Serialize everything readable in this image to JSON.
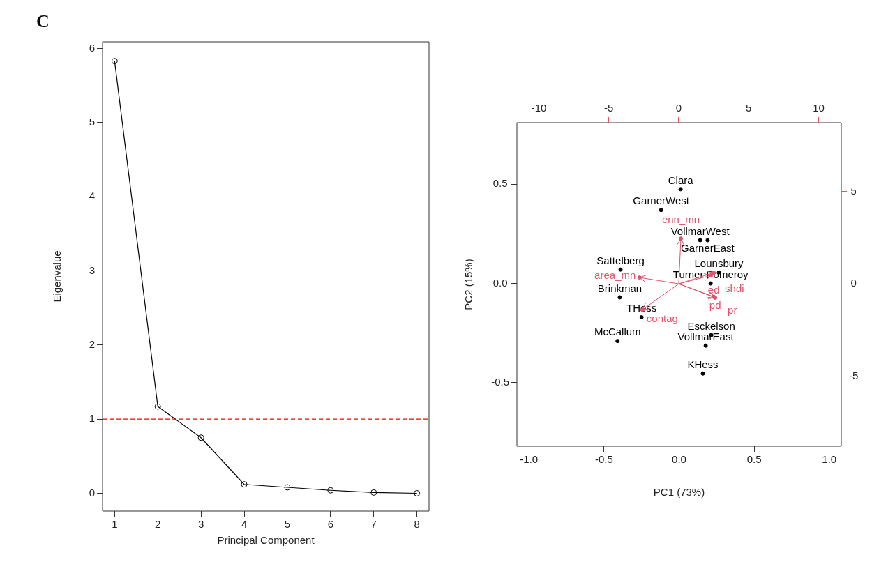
{
  "chart_data": [
    {
      "type": "line",
      "xlabel": "Principal Component",
      "ylabel": "Eigenvalue",
      "annotations": [
        "C"
      ],
      "x": [
        1,
        2,
        3,
        4,
        5,
        6,
        7,
        8
      ],
      "series": [
        {
          "color": "#000000",
          "values": [
            5.83,
            1.17,
            0.75,
            0.12,
            0.08,
            0.04,
            0.01,
            0
          ]
        }
      ],
      "xlim": [
        0.72,
        8.28
      ],
      "ylim": [
        -0.24,
        6.09
      ],
      "xticks": [
        1,
        2,
        3,
        4,
        5,
        6,
        7,
        8
      ],
      "yticks": [
        0,
        1,
        2,
        3,
        4,
        5,
        6
      ],
      "marker": "circle",
      "line_style": "solid",
      "ref_lines": [
        {
          "axis": "y",
          "value": 1,
          "color": "#ff0000",
          "line_style": "dashed"
        }
      ],
      "grid": false,
      "legend": false
    },
    {
      "type": "scatter",
      "xlabel": "PC1 (73%)",
      "ylabel": "PC2 (15%)",
      "grid": false,
      "legend": false,
      "marker": "circle",
      "series": [
        {
          "color": "#000000",
          "x": [
            0.01,
            -0.12,
            0.14,
            0.19,
            -0.39,
            0.265,
            0.21,
            -0.395,
            -0.25,
            -0.41,
            0.214,
            0.177,
            0.158
          ],
          "values": [
            0.475,
            0.37,
            0.218,
            0.218,
            0.07,
            0.056,
            0,
            -0.07,
            -0.17,
            -0.29,
            -0.26,
            -0.313,
            -0.454
          ],
          "value_labels": [
            "Clara",
            "GarnerWest",
            "VollmarWest",
            "GarnerEast",
            "Sattelberg",
            "Lounsbury",
            "Turner Pomeroy",
            "Brinkman",
            "THess",
            "McCallum",
            "Esckelson",
            "VollmarEast",
            "KHess"
          ]
        }
      ],
      "xlim": [
        -1.08,
        1.08
      ],
      "ylim": [
        -0.82,
        0.81
      ],
      "xticks": [
        {
          "value": -1,
          "label": "-1.0"
        },
        {
          "value": -0.5,
          "label": "-0.5"
        },
        {
          "value": 0,
          "label": "0.0"
        },
        {
          "value": 0.5,
          "label": "0.5"
        },
        {
          "value": 1,
          "label": "1.0"
        }
      ],
      "yticks": [
        {
          "value": -0.5,
          "label": "-0.5"
        },
        {
          "value": 0,
          "label": "0.0"
        },
        {
          "value": 0.5,
          "label": "0.5"
        }
      ]
    },
    {
      "type": "scatter",
      "grid": false,
      "legend": false,
      "marker": "circle",
      "series": [
        {
          "color": "#df536b",
          "axis": "y2",
          "x": [
            0.15,
            -2.8,
            -2.6,
            2.5,
            2.3,
            2.6,
            2.5
          ],
          "values": [
            2.45,
            0.34,
            -1.4,
            0.6,
            0.45,
            -0.75,
            -0.7
          ],
          "value_labels": [
            "enn_mn",
            "area_mn",
            "contag",
            "ed",
            "shdi",
            "pd",
            "pr"
          ]
        }
      ],
      "xlim": [
        -11.57,
        11.62
      ],
      "xticks": [
        -10,
        -5,
        0,
        5,
        10
      ],
      "y2lim": [
        -8.79,
        8.72
      ],
      "y2ticks": [
        -5,
        0,
        5
      ]
    }
  ]
}
